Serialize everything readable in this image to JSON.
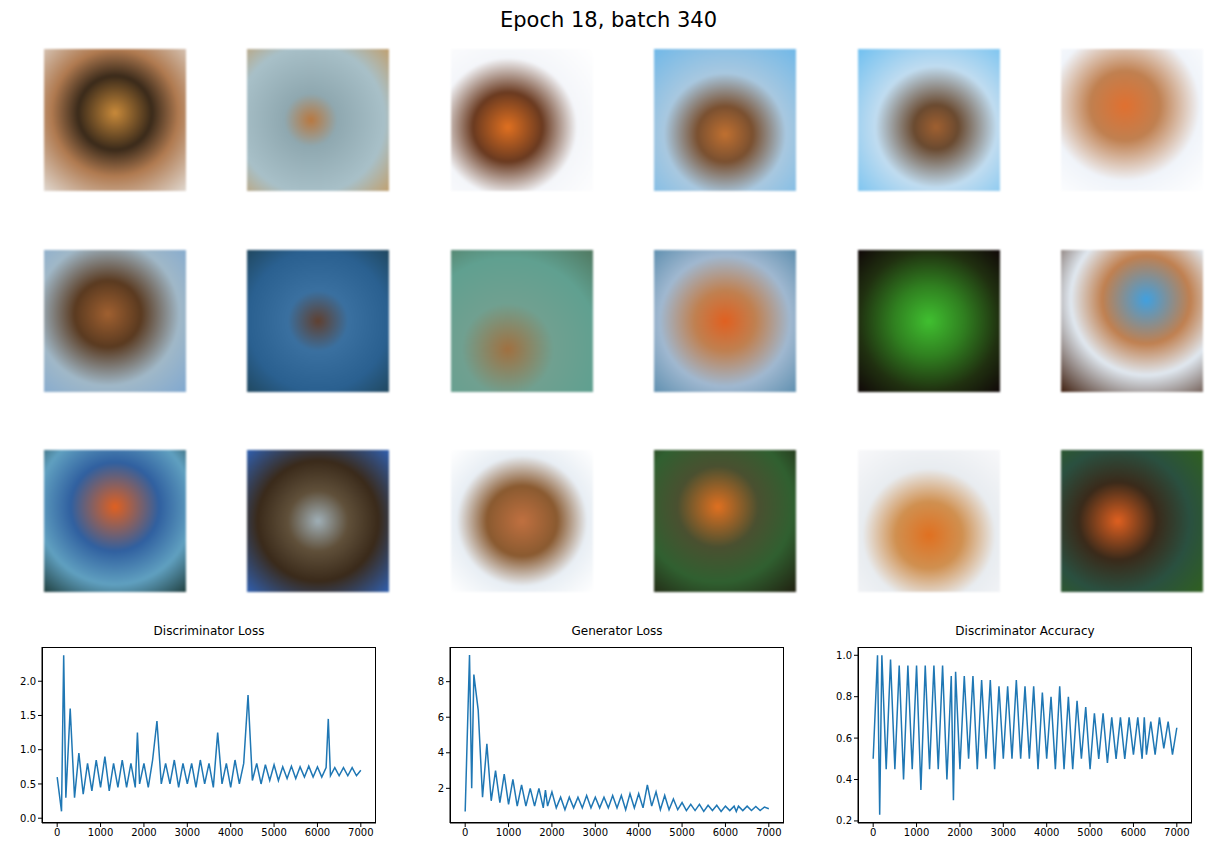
{
  "title": "Epoch 18, batch 340",
  "chart_data": [
    {
      "type": "line",
      "title": "Discriminator Loss",
      "color": "#1f77b4",
      "x": [
        0,
        100,
        150,
        200,
        300,
        400,
        500,
        600,
        700,
        800,
        900,
        1000,
        1100,
        1200,
        1300,
        1400,
        1500,
        1600,
        1700,
        1800,
        1850,
        1900,
        2000,
        2100,
        2200,
        2300,
        2400,
        2500,
        2600,
        2700,
        2800,
        2900,
        3000,
        3100,
        3200,
        3300,
        3400,
        3500,
        3600,
        3700,
        3800,
        3900,
        4000,
        4100,
        4200,
        4300,
        4400,
        4500,
        4600,
        4700,
        4800,
        4900,
        5000,
        5100,
        5200,
        5300,
        5400,
        5500,
        5600,
        5700,
        5800,
        5900,
        6000,
        6100,
        6200,
        6250,
        6300,
        6400,
        6500,
        6600,
        6700,
        6800,
        6900,
        7000
      ],
      "values": [
        0.6,
        0.1,
        2.38,
        0.3,
        1.6,
        0.3,
        0.95,
        0.35,
        0.8,
        0.4,
        0.85,
        0.45,
        0.9,
        0.4,
        0.8,
        0.45,
        0.85,
        0.45,
        0.8,
        0.45,
        1.25,
        0.5,
        0.8,
        0.45,
        0.85,
        1.42,
        0.5,
        0.8,
        0.5,
        0.85,
        0.45,
        0.8,
        0.5,
        0.8,
        0.45,
        0.85,
        0.5,
        0.8,
        0.45,
        1.25,
        0.5,
        0.8,
        0.45,
        0.85,
        0.5,
        0.8,
        1.8,
        0.55,
        0.8,
        0.5,
        0.78,
        0.55,
        0.78,
        0.55,
        0.75,
        0.58,
        0.76,
        0.58,
        0.75,
        0.6,
        0.76,
        0.6,
        0.75,
        0.6,
        0.74,
        1.45,
        0.62,
        0.74,
        0.62,
        0.74,
        0.62,
        0.74,
        0.62,
        0.7
      ],
      "xlim": [
        -350,
        7350
      ],
      "xticks": [
        0,
        1000,
        2000,
        3000,
        4000,
        5000,
        6000,
        7000
      ],
      "ylim": [
        -0.07,
        2.5
      ],
      "yticks": [
        {
          "value": 0,
          "label": "0.0"
        },
        {
          "value": 0.5,
          "label": "0.5"
        },
        {
          "value": 1,
          "label": "1.0"
        },
        {
          "value": 1.5,
          "label": "1.5"
        },
        {
          "value": 2,
          "label": "2.0"
        }
      ]
    },
    {
      "type": "line",
      "title": "Generator Loss",
      "color": "#1f77b4",
      "x": [
        0,
        100,
        150,
        200,
        300,
        400,
        500,
        600,
        700,
        800,
        900,
        1000,
        1100,
        1200,
        1300,
        1400,
        1500,
        1600,
        1700,
        1800,
        1850,
        1900,
        2000,
        2100,
        2200,
        2300,
        2400,
        2500,
        2600,
        2700,
        2800,
        2900,
        3000,
        3100,
        3200,
        3300,
        3400,
        3500,
        3600,
        3700,
        3800,
        3900,
        4000,
        4100,
        4200,
        4300,
        4400,
        4500,
        4600,
        4700,
        4800,
        4900,
        5000,
        5100,
        5200,
        5300,
        5400,
        5500,
        5600,
        5700,
        5800,
        5900,
        6000,
        6100,
        6200,
        6250,
        6300,
        6400,
        6500,
        6600,
        6700,
        6800,
        6900,
        7000
      ],
      "values": [
        0.7,
        9.5,
        2.0,
        8.4,
        6.4,
        1.5,
        4.5,
        1.3,
        3.0,
        1.2,
        2.8,
        1.1,
        2.5,
        1.0,
        2.2,
        1.0,
        2.0,
        1.0,
        2.0,
        0.9,
        1.9,
        1.0,
        1.8,
        0.9,
        1.5,
        0.8,
        1.5,
        0.9,
        1.5,
        0.9,
        1.6,
        0.9,
        1.5,
        0.9,
        1.5,
        0.9,
        1.6,
        0.9,
        1.6,
        0.8,
        1.7,
        0.9,
        1.7,
        0.9,
        2.2,
        1.0,
        1.8,
        0.8,
        1.6,
        0.8,
        1.4,
        0.8,
        1.2,
        0.75,
        1.1,
        0.75,
        1.1,
        0.7,
        1.05,
        0.75,
        1.05,
        0.7,
        1.0,
        0.75,
        1.0,
        0.7,
        1.0,
        0.75,
        1.0,
        0.75,
        0.98,
        0.75,
        0.95,
        0.85
      ],
      "xlim": [
        -350,
        7350
      ],
      "xticks": [
        0,
        1000,
        2000,
        3000,
        4000,
        5000,
        6000,
        7000
      ],
      "ylim": [
        0.05,
        9.95
      ],
      "yticks": [
        2,
        4,
        6,
        8
      ]
    },
    {
      "type": "line",
      "title": "Discriminator Accuracy",
      "color": "#1f77b4",
      "x": [
        0,
        100,
        150,
        200,
        300,
        400,
        500,
        600,
        700,
        800,
        900,
        1000,
        1100,
        1200,
        1300,
        1400,
        1500,
        1600,
        1700,
        1800,
        1850,
        1900,
        2000,
        2100,
        2200,
        2300,
        2400,
        2500,
        2600,
        2700,
        2800,
        2900,
        3000,
        3100,
        3200,
        3300,
        3400,
        3500,
        3600,
        3700,
        3800,
        3900,
        4000,
        4100,
        4200,
        4300,
        4400,
        4500,
        4600,
        4700,
        4800,
        4900,
        5000,
        5100,
        5200,
        5300,
        5400,
        5500,
        5600,
        5700,
        5800,
        5900,
        6000,
        6100,
        6200,
        6250,
        6300,
        6400,
        6500,
        6600,
        6700,
        6800,
        6900,
        7000
      ],
      "values": [
        0.5,
        1.0,
        0.23,
        1.0,
        0.45,
        0.98,
        0.45,
        0.95,
        0.4,
        0.95,
        0.45,
        0.95,
        0.35,
        0.95,
        0.45,
        0.95,
        0.45,
        0.95,
        0.4,
        0.9,
        0.3,
        0.92,
        0.45,
        0.9,
        0.5,
        0.9,
        0.45,
        0.88,
        0.5,
        0.88,
        0.45,
        0.85,
        0.5,
        0.85,
        0.5,
        0.88,
        0.5,
        0.85,
        0.5,
        0.85,
        0.45,
        0.82,
        0.5,
        0.8,
        0.45,
        0.85,
        0.45,
        0.8,
        0.45,
        0.78,
        0.5,
        0.75,
        0.45,
        0.72,
        0.5,
        0.72,
        0.48,
        0.7,
        0.5,
        0.7,
        0.5,
        0.7,
        0.52,
        0.7,
        0.5,
        0.7,
        0.52,
        0.68,
        0.52,
        0.7,
        0.55,
        0.68,
        0.52,
        0.65
      ],
      "xlim": [
        -350,
        7350
      ],
      "xticks": [
        0,
        1000,
        2000,
        3000,
        4000,
        5000,
        6000,
        7000
      ],
      "ylim": [
        0.19,
        1.04
      ],
      "yticks": [
        {
          "value": 0.2,
          "label": "0.2"
        },
        {
          "value": 0.4,
          "label": "0.4"
        },
        {
          "value": 0.6,
          "label": "0.6"
        },
        {
          "value": 0.8,
          "label": "0.8"
        },
        {
          "value": 1,
          "label": "1.0"
        }
      ]
    }
  ]
}
